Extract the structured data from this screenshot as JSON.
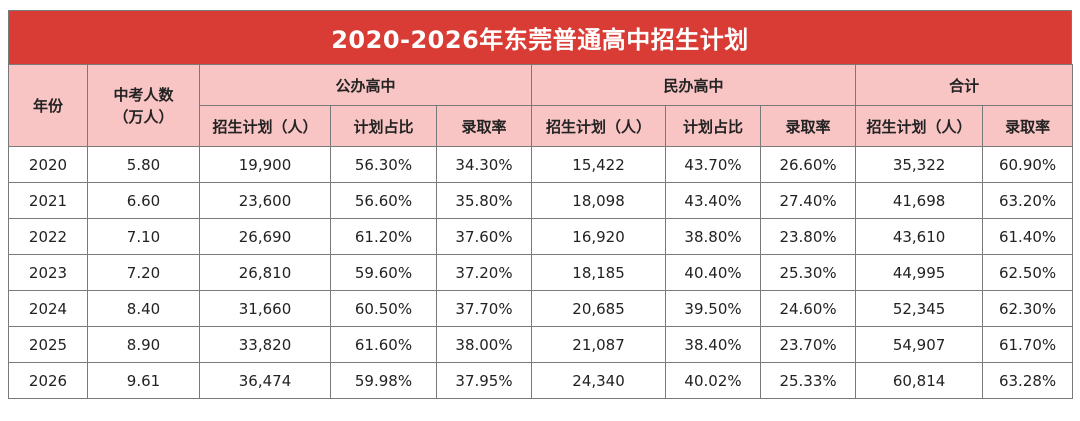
{
  "title": "2020-2026年东莞普通高中招生计划",
  "headers": {
    "year": "年份",
    "exam_line1": "中考人数",
    "exam_line2": "（万人）",
    "public": "公办高中",
    "private": "民办高中",
    "total": "合计",
    "plan": "招生计划（人）",
    "ratio": "计划占比",
    "rate": "录取率"
  },
  "rows": [
    {
      "year": "2020",
      "exam": "5.80",
      "pub_plan": "19,900",
      "pub_ratio": "56.30%",
      "pub_rate": "34.30%",
      "pri_plan": "15,422",
      "pri_ratio": "43.70%",
      "pri_rate": "26.60%",
      "tot_plan": "35,322",
      "tot_rate": "60.90%"
    },
    {
      "year": "2021",
      "exam": "6.60",
      "pub_plan": "23,600",
      "pub_ratio": "56.60%",
      "pub_rate": "35.80%",
      "pri_plan": "18,098",
      "pri_ratio": "43.40%",
      "pri_rate": "27.40%",
      "tot_plan": "41,698",
      "tot_rate": "63.20%"
    },
    {
      "year": "2022",
      "exam": "7.10",
      "pub_plan": "26,690",
      "pub_ratio": "61.20%",
      "pub_rate": "37.60%",
      "pri_plan": "16,920",
      "pri_ratio": "38.80%",
      "pri_rate": "23.80%",
      "tot_plan": "43,610",
      "tot_rate": "61.40%"
    },
    {
      "year": "2023",
      "exam": "7.20",
      "pub_plan": "26,810",
      "pub_ratio": "59.60%",
      "pub_rate": "37.20%",
      "pri_plan": "18,185",
      "pri_ratio": "40.40%",
      "pri_rate": "25.30%",
      "tot_plan": "44,995",
      "tot_rate": "62.50%"
    },
    {
      "year": "2024",
      "exam": "8.40",
      "pub_plan": "31,660",
      "pub_ratio": "60.50%",
      "pub_rate": "37.70%",
      "pri_plan": "20,685",
      "pri_ratio": "39.50%",
      "pri_rate": "24.60%",
      "tot_plan": "52,345",
      "tot_rate": "62.30%"
    },
    {
      "year": "2025",
      "exam": "8.90",
      "pub_plan": "33,820",
      "pub_ratio": "61.60%",
      "pub_rate": "38.00%",
      "pri_plan": "21,087",
      "pri_ratio": "38.40%",
      "pri_rate": "23.70%",
      "tot_plan": "54,907",
      "tot_rate": "61.70%"
    },
    {
      "year": "2026",
      "exam": "9.61",
      "pub_plan": "36,474",
      "pub_ratio": "59.98%",
      "pub_rate": "37.95%",
      "pri_plan": "24,340",
      "pri_ratio": "40.02%",
      "pri_rate": "25.33%",
      "tot_plan": "60,814",
      "tot_rate": "63.28%"
    }
  ],
  "colors": {
    "title_bg": "#d93b35",
    "header_bg": "#f8c4c4",
    "border": "#7a7a7a"
  }
}
